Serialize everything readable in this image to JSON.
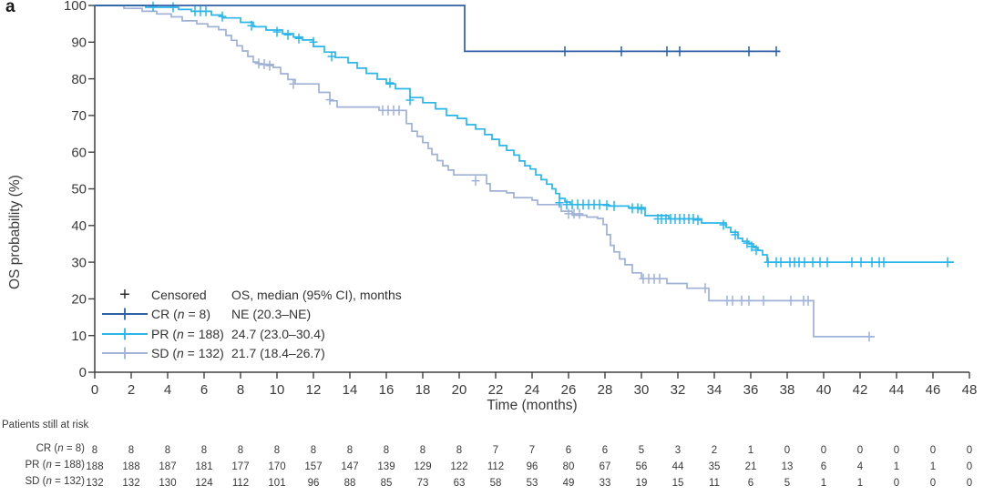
{
  "panel_label": "a",
  "axes": {
    "y": {
      "label": "OS probability (%)",
      "ticks": [
        0,
        10,
        20,
        30,
        40,
        50,
        60,
        70,
        80,
        90,
        100
      ],
      "range": [
        0,
        100
      ]
    },
    "x": {
      "label": "Time (months)",
      "ticks": [
        0,
        2,
        4,
        6,
        8,
        10,
        12,
        14,
        16,
        18,
        20,
        22,
        24,
        26,
        28,
        30,
        32,
        34,
        36,
        38,
        40,
        42,
        44,
        46,
        48
      ],
      "range": [
        0,
        48
      ]
    }
  },
  "legend": {
    "censored_symbol": "+",
    "censored_label": "Censored",
    "stats_header": "OS, median (95% CI), months",
    "rows": [
      {
        "group": "CR",
        "n": "8",
        "median": "NE (20.3–NE)",
        "color": "#2e5fa5"
      },
      {
        "group": "PR",
        "n": "188",
        "median": "24.7 (23.0–30.4)",
        "color": "#2bb5e9"
      },
      {
        "group": "SD",
        "n": "132",
        "median": "21.7 (18.4–26.7)",
        "color": "#9fb1d7"
      }
    ]
  },
  "at_risk": {
    "title": "Patients still at risk",
    "rows": [
      {
        "group": "CR",
        "n": "8",
        "counts": [
          8,
          8,
          8,
          8,
          8,
          8,
          8,
          8,
          8,
          8,
          8,
          7,
          7,
          6,
          6,
          5,
          3,
          2,
          1,
          0,
          0,
          0,
          0,
          0,
          0
        ]
      },
      {
        "group": "PR",
        "n": "188",
        "counts": [
          188,
          188,
          187,
          181,
          177,
          170,
          157,
          147,
          139,
          129,
          122,
          112,
          96,
          80,
          67,
          56,
          44,
          35,
          21,
          13,
          6,
          4,
          1,
          1,
          0
        ]
      },
      {
        "group": "SD",
        "n": "132",
        "counts": [
          132,
          132,
          130,
          124,
          112,
          101,
          96,
          88,
          85,
          73,
          63,
          58,
          53,
          49,
          33,
          19,
          15,
          11,
          6,
          5,
          1,
          1,
          0,
          0,
          0
        ]
      }
    ]
  },
  "chart_data": {
    "type": "line",
    "subtype": "kaplan-meier-step",
    "title": "",
    "xlabel": "Time (months)",
    "ylabel": "OS probability (%)",
    "xlim": [
      0,
      48
    ],
    "ylim": [
      0,
      100
    ],
    "grid": false,
    "legend_position": "lower-left",
    "series": [
      {
        "name": "CR (n = 8)",
        "color": "#2e5fa5",
        "median_text": "NE (20.3–NE)",
        "steps": [
          [
            0,
            100
          ],
          [
            20.3,
            87.5
          ],
          [
            37.6,
            87.5
          ]
        ],
        "censors": [
          [
            25.8,
            87.5
          ],
          [
            28.9,
            87.5
          ],
          [
            31.4,
            87.5
          ],
          [
            32.1,
            87.5
          ],
          [
            35.9,
            87.5
          ],
          [
            37.4,
            87.5
          ]
        ]
      },
      {
        "name": "PR (n = 188)",
        "color": "#2bb5e9",
        "median_text": "24.7 (23.0–30.4)",
        "steps": [
          [
            0,
            100
          ],
          [
            2.8,
            99.5
          ],
          [
            4.6,
            98.9
          ],
          [
            5.3,
            98.4
          ],
          [
            6.4,
            97.4
          ],
          [
            7.0,
            96.6
          ],
          [
            8.0,
            95.4
          ],
          [
            8.7,
            94.2
          ],
          [
            9.4,
            93.3
          ],
          [
            10.3,
            92.3
          ],
          [
            10.9,
            91.4
          ],
          [
            11.4,
            90.6
          ],
          [
            12.0,
            88.8
          ],
          [
            12.6,
            87.3
          ],
          [
            13.2,
            85.8
          ],
          [
            13.9,
            84.4
          ],
          [
            14.4,
            82.9
          ],
          [
            14.9,
            81.5
          ],
          [
            15.5,
            79.9
          ],
          [
            16.0,
            78.6
          ],
          [
            16.5,
            77.3
          ],
          [
            17.3,
            74.9
          ],
          [
            18.0,
            73.5
          ],
          [
            18.7,
            71.8
          ],
          [
            19.3,
            70.0
          ],
          [
            19.9,
            69.2
          ],
          [
            20.4,
            67.5
          ],
          [
            20.9,
            66.3
          ],
          [
            21.4,
            64.8
          ],
          [
            21.8,
            63.5
          ],
          [
            22.2,
            61.8
          ],
          [
            22.6,
            60.5
          ],
          [
            23.0,
            59.2
          ],
          [
            23.3,
            57.6
          ],
          [
            23.6,
            56.3
          ],
          [
            23.9,
            55.4
          ],
          [
            24.2,
            53.8
          ],
          [
            24.5,
            52.5
          ],
          [
            24.8,
            51.3
          ],
          [
            25.1,
            50.0
          ],
          [
            25.3,
            48.7
          ],
          [
            25.5,
            47.4
          ],
          [
            25.8,
            46.4
          ],
          [
            26.1,
            45.7
          ],
          [
            28.2,
            45.3
          ],
          [
            29.3,
            44.9
          ],
          [
            30.2,
            42.7
          ],
          [
            31.5,
            41.8
          ],
          [
            33.3,
            40.7
          ],
          [
            34.65,
            39.5
          ],
          [
            34.9,
            38.2
          ],
          [
            35.3,
            36.5
          ],
          [
            35.55,
            35.7
          ],
          [
            35.9,
            35.0
          ],
          [
            36.15,
            34.0
          ],
          [
            36.4,
            33.2
          ],
          [
            36.65,
            32.0
          ],
          [
            36.9,
            30.0
          ],
          [
            47.15,
            30.0
          ]
        ],
        "censors": [
          [
            3.2,
            99.7
          ],
          [
            4.3,
            99.5
          ],
          [
            5.5,
            98.4
          ],
          [
            5.8,
            98.4
          ],
          [
            6.1,
            98.4
          ],
          [
            7.0,
            97.0
          ],
          [
            8.6,
            94.5
          ],
          [
            10.0,
            92.8
          ],
          [
            10.6,
            92.0
          ],
          [
            11.2,
            91.0
          ],
          [
            12.0,
            90.0
          ],
          [
            13.0,
            86.1
          ],
          [
            16.2,
            78.9
          ],
          [
            17.3,
            74.2
          ],
          [
            25.5,
            46.2
          ],
          [
            25.9,
            45.7
          ],
          [
            26.2,
            45.7
          ],
          [
            26.5,
            45.7
          ],
          [
            26.8,
            45.7
          ],
          [
            27.1,
            45.7
          ],
          [
            27.4,
            45.7
          ],
          [
            27.7,
            45.7
          ],
          [
            28.1,
            45.5
          ],
          [
            28.5,
            45.3
          ],
          [
            29.5,
            44.7
          ],
          [
            29.8,
            44.7
          ],
          [
            30.0,
            44.5
          ],
          [
            30.9,
            41.8
          ],
          [
            31.1,
            41.8
          ],
          [
            31.35,
            41.8
          ],
          [
            31.6,
            41.8
          ],
          [
            31.85,
            41.8
          ],
          [
            32.1,
            41.8
          ],
          [
            32.35,
            41.8
          ],
          [
            32.6,
            41.8
          ],
          [
            32.85,
            41.8
          ],
          [
            33.1,
            41.5
          ],
          [
            34.5,
            40.2
          ],
          [
            35.15,
            37.5
          ],
          [
            35.8,
            35.2
          ],
          [
            36.05,
            34.3
          ],
          [
            36.3,
            33.3
          ],
          [
            36.95,
            30.0
          ],
          [
            37.4,
            30.0
          ],
          [
            37.65,
            30.0
          ],
          [
            38.15,
            30.0
          ],
          [
            38.4,
            30.0
          ],
          [
            38.65,
            30.0
          ],
          [
            38.95,
            30.0
          ],
          [
            39.4,
            30.0
          ],
          [
            39.8,
            30.0
          ],
          [
            40.2,
            30.0
          ],
          [
            41.55,
            30.0
          ],
          [
            42.05,
            30.0
          ],
          [
            42.65,
            30.0
          ],
          [
            43.05,
            30.0
          ],
          [
            43.3,
            30.0
          ],
          [
            46.8,
            30.0
          ]
        ]
      },
      {
        "name": "SD (n = 132)",
        "color": "#9fb1d7",
        "median_text": "21.7 (18.4–26.7)",
        "steps": [
          [
            0,
            100
          ],
          [
            1.6,
            99.2
          ],
          [
            2.6,
            98.4
          ],
          [
            3.4,
            97.7
          ],
          [
            4.2,
            96.9
          ],
          [
            4.8,
            95.8
          ],
          [
            5.6,
            95.0
          ],
          [
            6.2,
            94.2
          ],
          [
            6.8,
            93.4
          ],
          [
            7.2,
            91.8
          ],
          [
            7.5,
            90.5
          ],
          [
            7.8,
            89.0
          ],
          [
            8.1,
            87.6
          ],
          [
            8.4,
            86.1
          ],
          [
            8.7,
            84.6
          ],
          [
            9.0,
            83.9
          ],
          [
            9.8,
            83.1
          ],
          [
            10.2,
            81.4
          ],
          [
            10.6,
            79.8
          ],
          [
            11.0,
            78.6
          ],
          [
            12.3,
            76.3
          ],
          [
            12.9,
            74.0
          ],
          [
            13.3,
            72.3
          ],
          [
            15.6,
            71.4
          ],
          [
            17.1,
            67.8
          ],
          [
            17.4,
            65.7
          ],
          [
            17.7,
            64.3
          ],
          [
            18.0,
            62.6
          ],
          [
            18.3,
            61.0
          ],
          [
            18.5,
            59.4
          ],
          [
            18.8,
            57.7
          ],
          [
            19.1,
            56.3
          ],
          [
            19.4,
            55.1
          ],
          [
            19.7,
            53.8
          ],
          [
            21.5,
            51.4
          ],
          [
            21.7,
            49.4
          ],
          [
            22.6,
            48.9
          ],
          [
            23.0,
            47.6
          ],
          [
            24.0,
            46.9
          ],
          [
            24.3,
            45.7
          ],
          [
            25.6,
            43.9
          ],
          [
            26.2,
            42.8
          ],
          [
            27.0,
            42.3
          ],
          [
            27.6,
            41.9
          ],
          [
            27.9,
            40.3
          ],
          [
            28.1,
            37.5
          ],
          [
            28.3,
            34.6
          ],
          [
            28.5,
            32.8
          ],
          [
            28.8,
            30.9
          ],
          [
            29.1,
            29.3
          ],
          [
            29.5,
            27.1
          ],
          [
            30.0,
            25.5
          ],
          [
            31.4,
            24.2
          ],
          [
            32.5,
            22.9
          ],
          [
            33.7,
            19.5
          ],
          [
            39.45,
            9.7
          ],
          [
            42.8,
            9.7
          ]
        ],
        "censors": [
          [
            9.0,
            84.2
          ],
          [
            9.3,
            84.0
          ],
          [
            9.6,
            83.6
          ],
          [
            10.9,
            78.6
          ],
          [
            12.9,
            74.3
          ],
          [
            15.8,
            71.4
          ],
          [
            16.1,
            71.4
          ],
          [
            16.4,
            71.4
          ],
          [
            16.7,
            71.4
          ],
          [
            20.9,
            52.2
          ],
          [
            26.0,
            43.2
          ],
          [
            26.3,
            43.2
          ],
          [
            26.6,
            43.2
          ],
          [
            30.1,
            25.5
          ],
          [
            30.4,
            25.5
          ],
          [
            30.7,
            25.5
          ],
          [
            31.0,
            25.5
          ],
          [
            33.5,
            22.9
          ],
          [
            34.7,
            19.5
          ],
          [
            35.0,
            19.5
          ],
          [
            35.5,
            19.5
          ],
          [
            35.9,
            19.5
          ],
          [
            36.7,
            19.5
          ],
          [
            38.2,
            19.5
          ],
          [
            38.9,
            19.5
          ],
          [
            39.15,
            19.5
          ],
          [
            42.5,
            9.7
          ]
        ]
      }
    ]
  },
  "colors": {
    "axis": "#404040",
    "tick_text": "#3a3a3a",
    "censored_plus": "#2b2b2b"
  }
}
